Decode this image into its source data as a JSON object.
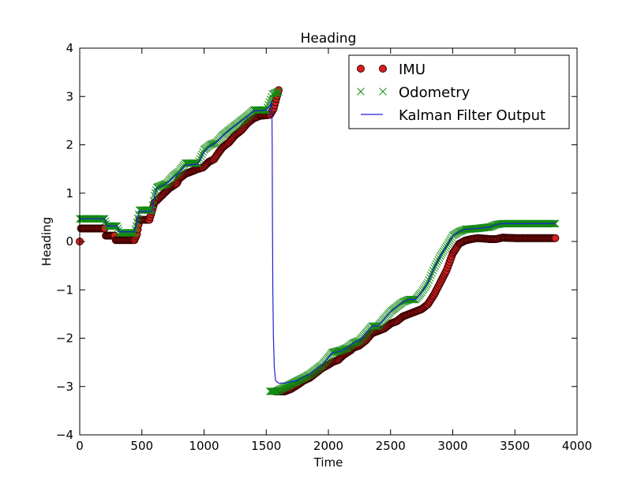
{
  "chart_data": {
    "type": "line",
    "title": "Heading",
    "xlabel": "Time",
    "ylabel": "Heading",
    "xlim": [
      0,
      4000
    ],
    "ylim": [
      -4,
      4
    ],
    "xticks": [
      0,
      500,
      1000,
      1500,
      2000,
      2500,
      3000,
      3500,
      4000
    ],
    "xtick_labels": [
      "0",
      "500",
      "1000",
      "1500",
      "2000",
      "2500",
      "3000",
      "3500",
      "4000"
    ],
    "yticks": [
      -4,
      -3,
      -2,
      -1,
      0,
      1,
      2,
      3,
      4
    ],
    "ytick_labels": [
      "−4",
      "−3",
      "−2",
      "−1",
      "0",
      "1",
      "2",
      "3",
      "4"
    ],
    "grid": false,
    "legend_position": "top-right",
    "colors": {
      "imu_fill": "#d62020",
      "imu_edge": "#3a0000",
      "odometry": "#138a13",
      "kalman": "#1f1fd6"
    },
    "series": [
      {
        "name": "IMU",
        "marker": "circle",
        "points": [
          [
            0,
            0
          ],
          [
            10,
            0.27
          ],
          [
            200,
            0.27
          ],
          [
            210,
            0.12
          ],
          [
            280,
            0.12
          ],
          [
            290,
            0.03
          ],
          [
            440,
            0.03
          ],
          [
            460,
            0.15
          ],
          [
            480,
            0.45
          ],
          [
            560,
            0.45
          ],
          [
            580,
            0.62
          ],
          [
            600,
            0.8
          ],
          [
            640,
            0.9
          ],
          [
            700,
            1.05
          ],
          [
            720,
            1.1
          ],
          [
            780,
            1.2
          ],
          [
            800,
            1.3
          ],
          [
            850,
            1.4
          ],
          [
            900,
            1.45
          ],
          [
            950,
            1.5
          ],
          [
            990,
            1.53
          ],
          [
            1000,
            1.55
          ],
          [
            1040,
            1.65
          ],
          [
            1080,
            1.7
          ],
          [
            1120,
            1.85
          ],
          [
            1150,
            1.95
          ],
          [
            1200,
            2.05
          ],
          [
            1250,
            2.2
          ],
          [
            1300,
            2.3
          ],
          [
            1350,
            2.45
          ],
          [
            1400,
            2.55
          ],
          [
            1450,
            2.6
          ],
          [
            1530,
            2.62
          ],
          [
            1560,
            2.75
          ],
          [
            1580,
            2.95
          ],
          [
            1600,
            3.13
          ],
          [
            1570,
            -3.1
          ],
          [
            1650,
            -3.1
          ],
          [
            1700,
            -3.05
          ],
          [
            1750,
            -2.97
          ],
          [
            1800,
            -2.88
          ],
          [
            1850,
            -2.82
          ],
          [
            1900,
            -2.72
          ],
          [
            1950,
            -2.62
          ],
          [
            2000,
            -2.55
          ],
          [
            2030,
            -2.5
          ],
          [
            2080,
            -2.45
          ],
          [
            2120,
            -2.35
          ],
          [
            2180,
            -2.25
          ],
          [
            2200,
            -2.2
          ],
          [
            2250,
            -2.15
          ],
          [
            2300,
            -2.05
          ],
          [
            2350,
            -1.9
          ],
          [
            2400,
            -1.85
          ],
          [
            2450,
            -1.8
          ],
          [
            2500,
            -1.7
          ],
          [
            2550,
            -1.65
          ],
          [
            2600,
            -1.55
          ],
          [
            2650,
            -1.5
          ],
          [
            2700,
            -1.45
          ],
          [
            2750,
            -1.4
          ],
          [
            2800,
            -1.3
          ],
          [
            2850,
            -1.1
          ],
          [
            2900,
            -0.85
          ],
          [
            2950,
            -0.6
          ],
          [
            3000,
            -0.25
          ],
          [
            3050,
            -0.05
          ],
          [
            3100,
            0.02
          ],
          [
            3150,
            0.05
          ],
          [
            3200,
            0.07
          ],
          [
            3300,
            0.05
          ],
          [
            3350,
            0.05
          ],
          [
            3400,
            0.08
          ],
          [
            3500,
            0.07
          ],
          [
            3600,
            0.07
          ],
          [
            3700,
            0.07
          ],
          [
            3825,
            0.07
          ]
        ]
      },
      {
        "name": "Odometry",
        "marker": "x",
        "points": [
          [
            0,
            0.47
          ],
          [
            200,
            0.47
          ],
          [
            220,
            0.32
          ],
          [
            300,
            0.32
          ],
          [
            320,
            0.18
          ],
          [
            440,
            0.18
          ],
          [
            460,
            0.4
          ],
          [
            480,
            0.65
          ],
          [
            580,
            0.65
          ],
          [
            600,
            0.95
          ],
          [
            620,
            1.12
          ],
          [
            700,
            1.2
          ],
          [
            750,
            1.35
          ],
          [
            800,
            1.45
          ],
          [
            850,
            1.62
          ],
          [
            950,
            1.62
          ],
          [
            1000,
            1.9
          ],
          [
            1050,
            2.0
          ],
          [
            1100,
            2.05
          ],
          [
            1150,
            2.2
          ],
          [
            1200,
            2.3
          ],
          [
            1250,
            2.4
          ],
          [
            1300,
            2.5
          ],
          [
            1350,
            2.6
          ],
          [
            1400,
            2.72
          ],
          [
            1500,
            2.72
          ],
          [
            1550,
            3.05
          ],
          [
            1600,
            3.1
          ],
          [
            1530,
            -3.1
          ],
          [
            1580,
            -3.1
          ],
          [
            1620,
            -3.05
          ],
          [
            1700,
            -2.95
          ],
          [
            1800,
            -2.82
          ],
          [
            1850,
            -2.75
          ],
          [
            1900,
            -2.65
          ],
          [
            1950,
            -2.55
          ],
          [
            2000,
            -2.4
          ],
          [
            2030,
            -2.3
          ],
          [
            2100,
            -2.25
          ],
          [
            2150,
            -2.2
          ],
          [
            2200,
            -2.1
          ],
          [
            2250,
            -2.05
          ],
          [
            2300,
            -1.9
          ],
          [
            2350,
            -1.75
          ],
          [
            2400,
            -1.75
          ],
          [
            2450,
            -1.6
          ],
          [
            2500,
            -1.45
          ],
          [
            2550,
            -1.35
          ],
          [
            2600,
            -1.25
          ],
          [
            2650,
            -1.2
          ],
          [
            2700,
            -1.2
          ],
          [
            2750,
            -1.05
          ],
          [
            2800,
            -0.85
          ],
          [
            2850,
            -0.55
          ],
          [
            2900,
            -0.3
          ],
          [
            2950,
            -0.1
          ],
          [
            3000,
            0.12
          ],
          [
            3050,
            0.2
          ],
          [
            3100,
            0.25
          ],
          [
            3200,
            0.27
          ],
          [
            3300,
            0.3
          ],
          [
            3350,
            0.35
          ],
          [
            3400,
            0.37
          ],
          [
            3500,
            0.37
          ],
          [
            3600,
            0.37
          ],
          [
            3700,
            0.37
          ],
          [
            3825,
            0.37
          ]
        ]
      },
      {
        "name": "Kalman Filter Output",
        "marker": "line",
        "points": [
          [
            0,
            0.47
          ],
          [
            200,
            0.47
          ],
          [
            220,
            0.32
          ],
          [
            300,
            0.32
          ],
          [
            320,
            0.2
          ],
          [
            440,
            0.2
          ],
          [
            460,
            0.4
          ],
          [
            480,
            0.62
          ],
          [
            580,
            0.62
          ],
          [
            600,
            0.92
          ],
          [
            620,
            1.1
          ],
          [
            700,
            1.2
          ],
          [
            750,
            1.32
          ],
          [
            800,
            1.42
          ],
          [
            850,
            1.58
          ],
          [
            950,
            1.6
          ],
          [
            1000,
            1.85
          ],
          [
            1050,
            1.98
          ],
          [
            1100,
            2.05
          ],
          [
            1150,
            2.18
          ],
          [
            1200,
            2.3
          ],
          [
            1250,
            2.4
          ],
          [
            1300,
            2.5
          ],
          [
            1350,
            2.58
          ],
          [
            1400,
            2.7
          ],
          [
            1500,
            2.72
          ],
          [
            1530,
            2.8
          ],
          [
            1545,
            2.9
          ],
          [
            1548,
            2.0
          ],
          [
            1550,
            0.5
          ],
          [
            1553,
            -1.0
          ],
          [
            1558,
            -2.0
          ],
          [
            1565,
            -2.6
          ],
          [
            1575,
            -2.88
          ],
          [
            1600,
            -2.93
          ],
          [
            1650,
            -2.93
          ],
          [
            1700,
            -2.9
          ],
          [
            1750,
            -2.88
          ],
          [
            1800,
            -2.8
          ],
          [
            1850,
            -2.75
          ],
          [
            1900,
            -2.65
          ],
          [
            1950,
            -2.55
          ],
          [
            2000,
            -2.4
          ],
          [
            2030,
            -2.3
          ],
          [
            2100,
            -2.27
          ],
          [
            2150,
            -2.2
          ],
          [
            2200,
            -2.1
          ],
          [
            2250,
            -2.05
          ],
          [
            2300,
            -1.9
          ],
          [
            2350,
            -1.75
          ],
          [
            2400,
            -1.75
          ],
          [
            2450,
            -1.6
          ],
          [
            2500,
            -1.45
          ],
          [
            2550,
            -1.35
          ],
          [
            2600,
            -1.25
          ],
          [
            2650,
            -1.2
          ],
          [
            2700,
            -1.2
          ],
          [
            2750,
            -1.05
          ],
          [
            2800,
            -0.85
          ],
          [
            2850,
            -0.55
          ],
          [
            2900,
            -0.3
          ],
          [
            2950,
            -0.1
          ],
          [
            3000,
            0.12
          ],
          [
            3050,
            0.2
          ],
          [
            3100,
            0.25
          ],
          [
            3200,
            0.27
          ],
          [
            3300,
            0.3
          ],
          [
            3350,
            0.35
          ],
          [
            3400,
            0.37
          ],
          [
            3500,
            0.37
          ],
          [
            3600,
            0.37
          ],
          [
            3700,
            0.37
          ],
          [
            3825,
            0.37
          ]
        ]
      }
    ]
  }
}
